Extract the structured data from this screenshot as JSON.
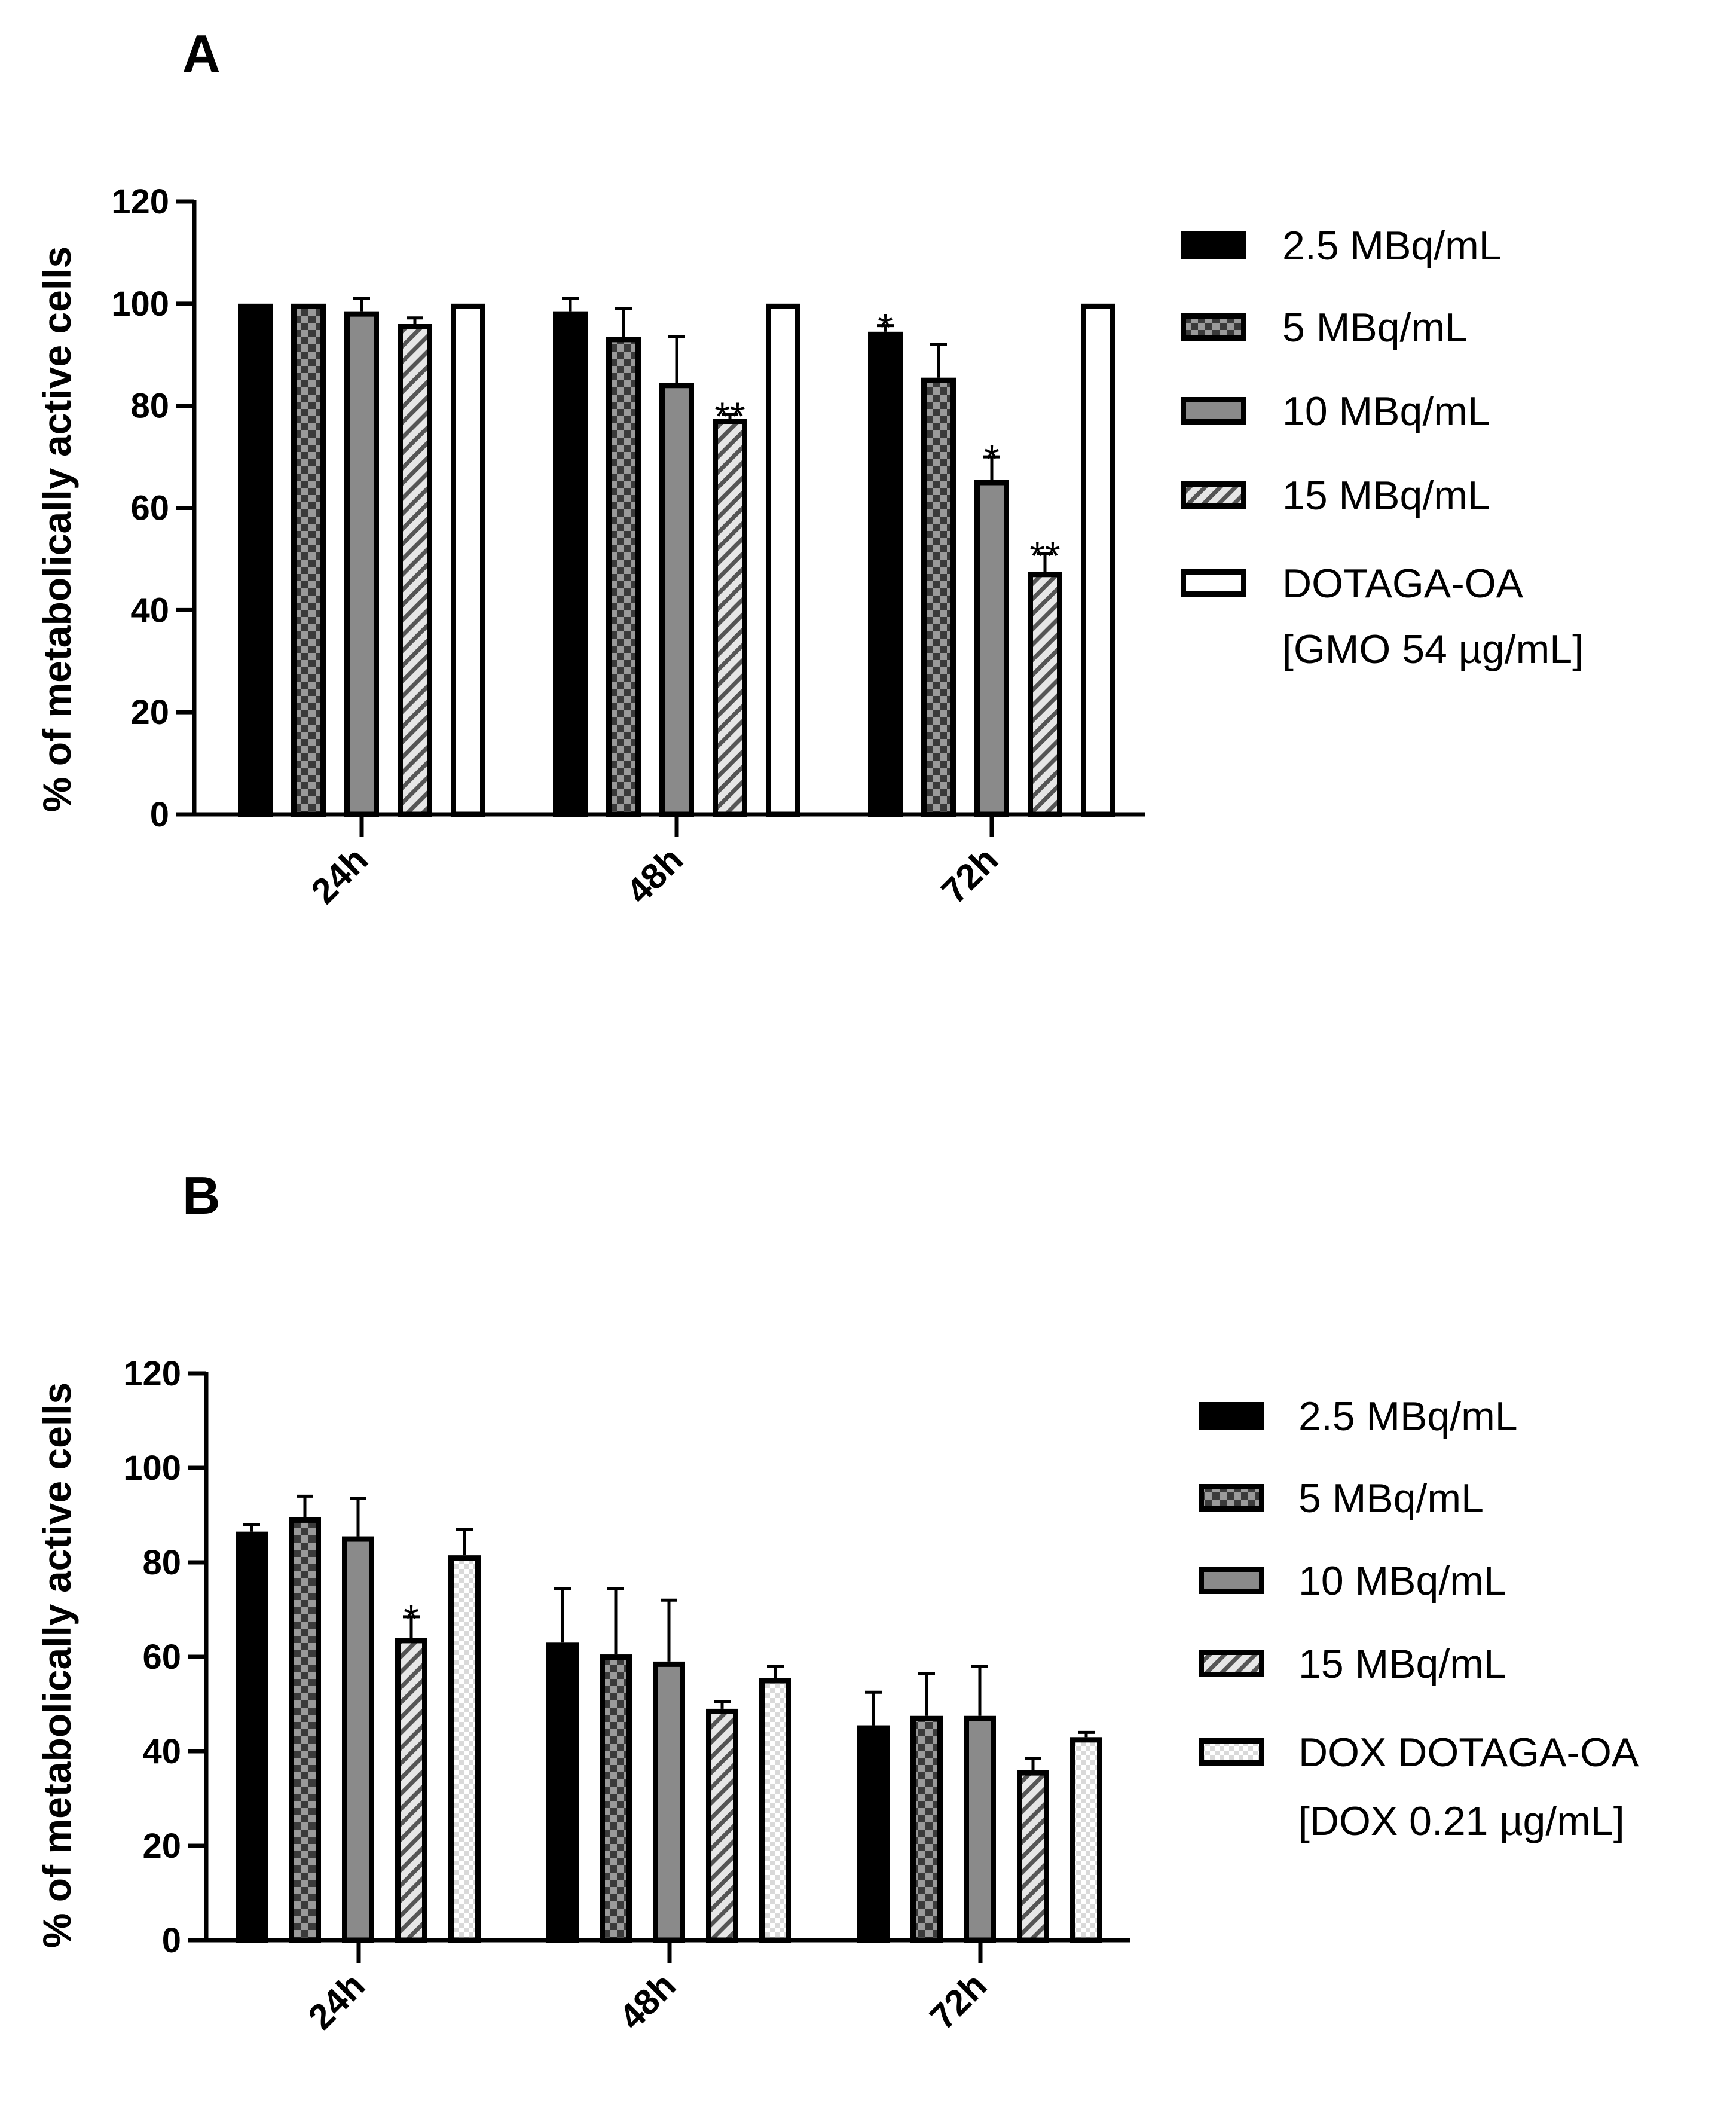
{
  "chart_data": [
    {
      "type": "bar",
      "panel": "A",
      "ylabel": "% of metabolically active cells",
      "ylim": [
        0,
        120
      ],
      "yticks": [
        "0",
        "20",
        "40",
        "60",
        "80",
        "100",
        "120"
      ],
      "categories": [
        "24h",
        "48h",
        "72h"
      ],
      "series": [
        {
          "name": "2.5 MBq/mL",
          "pattern": "solid-black",
          "values": [
            100,
            98.5,
            94.5
          ],
          "errors": [
            0,
            2.5,
            1.2
          ],
          "significance": [
            "",
            "",
            "*"
          ]
        },
        {
          "name": "5 MBq/mL",
          "pattern": "checker",
          "values": [
            100,
            93.5,
            85.5
          ],
          "errors": [
            0,
            5.5,
            6.5
          ],
          "significance": [
            "",
            "",
            ""
          ]
        },
        {
          "name": "10 MBq/mL",
          "pattern": "solid-gray",
          "values": [
            98.5,
            84.5,
            65.5
          ],
          "errors": [
            2.5,
            9,
            4.5
          ],
          "significance": [
            "",
            "",
            "*"
          ]
        },
        {
          "name": "15 MBq/mL",
          "pattern": "hatch",
          "values": [
            96,
            77.5,
            47.5
          ],
          "errors": [
            1.2,
            0.8,
            3.5
          ],
          "significance": [
            "",
            "**",
            "**"
          ]
        },
        {
          "name": "DOTAGA-OA [GMO 54 µg/mL]",
          "pattern": "white",
          "values": [
            100,
            100,
            100
          ],
          "errors": [
            0,
            0,
            0
          ],
          "significance": [
            "",
            "",
            ""
          ]
        }
      ],
      "legend": [
        "2.5 MBq/mL",
        "5 MBq/mL",
        "10 MBq/mL",
        "15 MBq/mL",
        "DOTAGA-OA",
        "[GMO 54 µg/mL]"
      ]
    },
    {
      "type": "bar",
      "panel": "B",
      "ylabel": "% of metabolically active cells",
      "ylim": [
        0,
        120
      ],
      "yticks": [
        "0",
        "20",
        "40",
        "60",
        "80",
        "100",
        "120"
      ],
      "categories": [
        "24h",
        "48h",
        "72h"
      ],
      "series": [
        {
          "name": "2.5 MBq/mL",
          "pattern": "solid-black",
          "values": [
            86.5,
            63,
            45.5
          ],
          "errors": [
            1.5,
            11.5,
            7
          ],
          "significance": [
            "",
            "",
            ""
          ]
        },
        {
          "name": "5 MBq/mL",
          "pattern": "checker",
          "values": [
            89.5,
            60.5,
            47.5
          ],
          "errors": [
            4.5,
            14,
            9
          ],
          "significance": [
            "",
            "",
            ""
          ]
        },
        {
          "name": "10 MBq/mL",
          "pattern": "solid-gray",
          "values": [
            85.5,
            59,
            47.5
          ],
          "errors": [
            8,
            13,
            10.5
          ],
          "significance": [
            "",
            "",
            ""
          ]
        },
        {
          "name": "15 MBq/mL",
          "pattern": "hatch",
          "values": [
            64,
            49,
            36
          ],
          "errors": [
            4.5,
            1.5,
            2.5
          ],
          "significance": [
            "*",
            "",
            ""
          ]
        },
        {
          "name": "DOX DOTAGA-OA [DOX 0.21 µg/mL]",
          "pattern": "dots",
          "values": [
            81.5,
            55.5,
            43
          ],
          "errors": [
            5.5,
            2.5,
            1
          ],
          "significance": [
            "",
            "",
            ""
          ]
        }
      ],
      "legend": [
        "2.5 MBq/mL",
        "5 MBq/mL",
        "10 MBq/mL",
        "15 MBq/mL",
        "DOX DOTAGA-OA",
        "[DOX 0.21 µg/mL]"
      ]
    }
  ]
}
